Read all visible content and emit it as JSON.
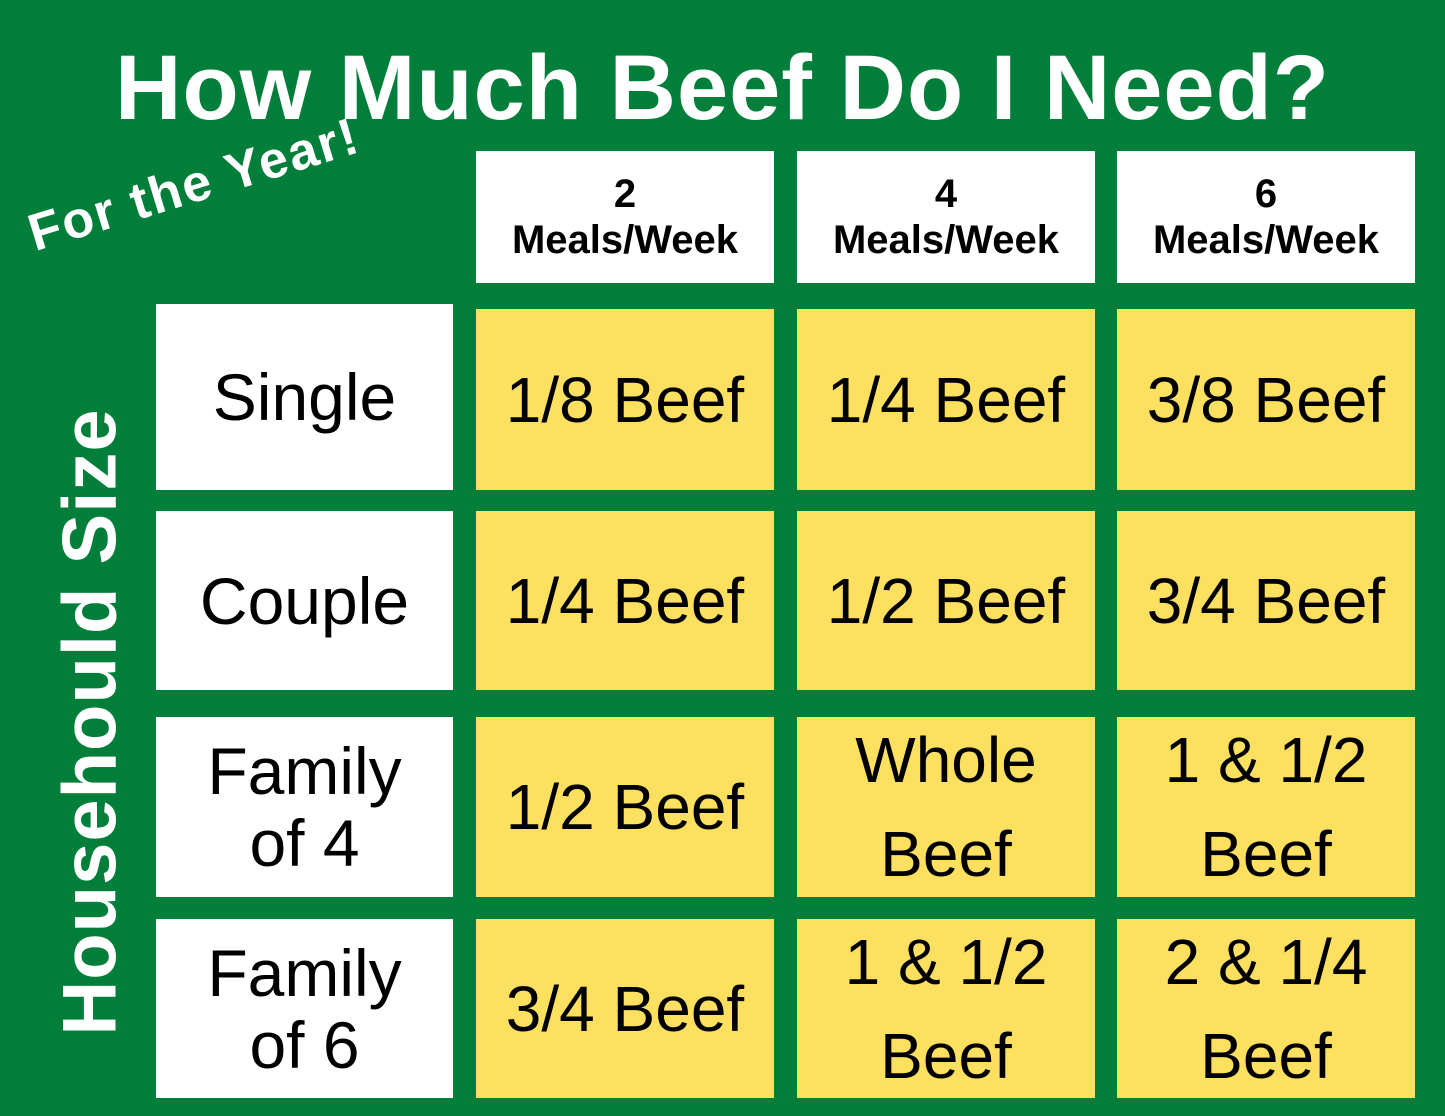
{
  "title": "How Much Beef Do I Need?",
  "subtitle": "For the Year!",
  "side_label": "Househould Size",
  "colors": {
    "background": "#017f3a",
    "cell": "#fde05f",
    "header": "#ffffff"
  },
  "columns": [
    {
      "count": "2",
      "unit": "Meals/Week"
    },
    {
      "count": "4",
      "unit": "Meals/Week"
    },
    {
      "count": "6",
      "unit": "Meals/Week"
    }
  ],
  "rows": [
    {
      "label": "Single",
      "cells": [
        "1/8 Beef",
        "1/4 Beef",
        "3/8 Beef"
      ]
    },
    {
      "label": "Couple",
      "cells": [
        "1/4 Beef",
        "1/2 Beef",
        "3/4 Beef"
      ]
    },
    {
      "label": "Family of 4",
      "cells": [
        "1/2 Beef",
        "Whole Beef",
        "1 & 1/2 Beef"
      ]
    },
    {
      "label": "Family of 6",
      "cells": [
        "3/4 Beef",
        "1 & 1/2 Beef",
        "2 & 1/4 Beef"
      ]
    }
  ]
}
